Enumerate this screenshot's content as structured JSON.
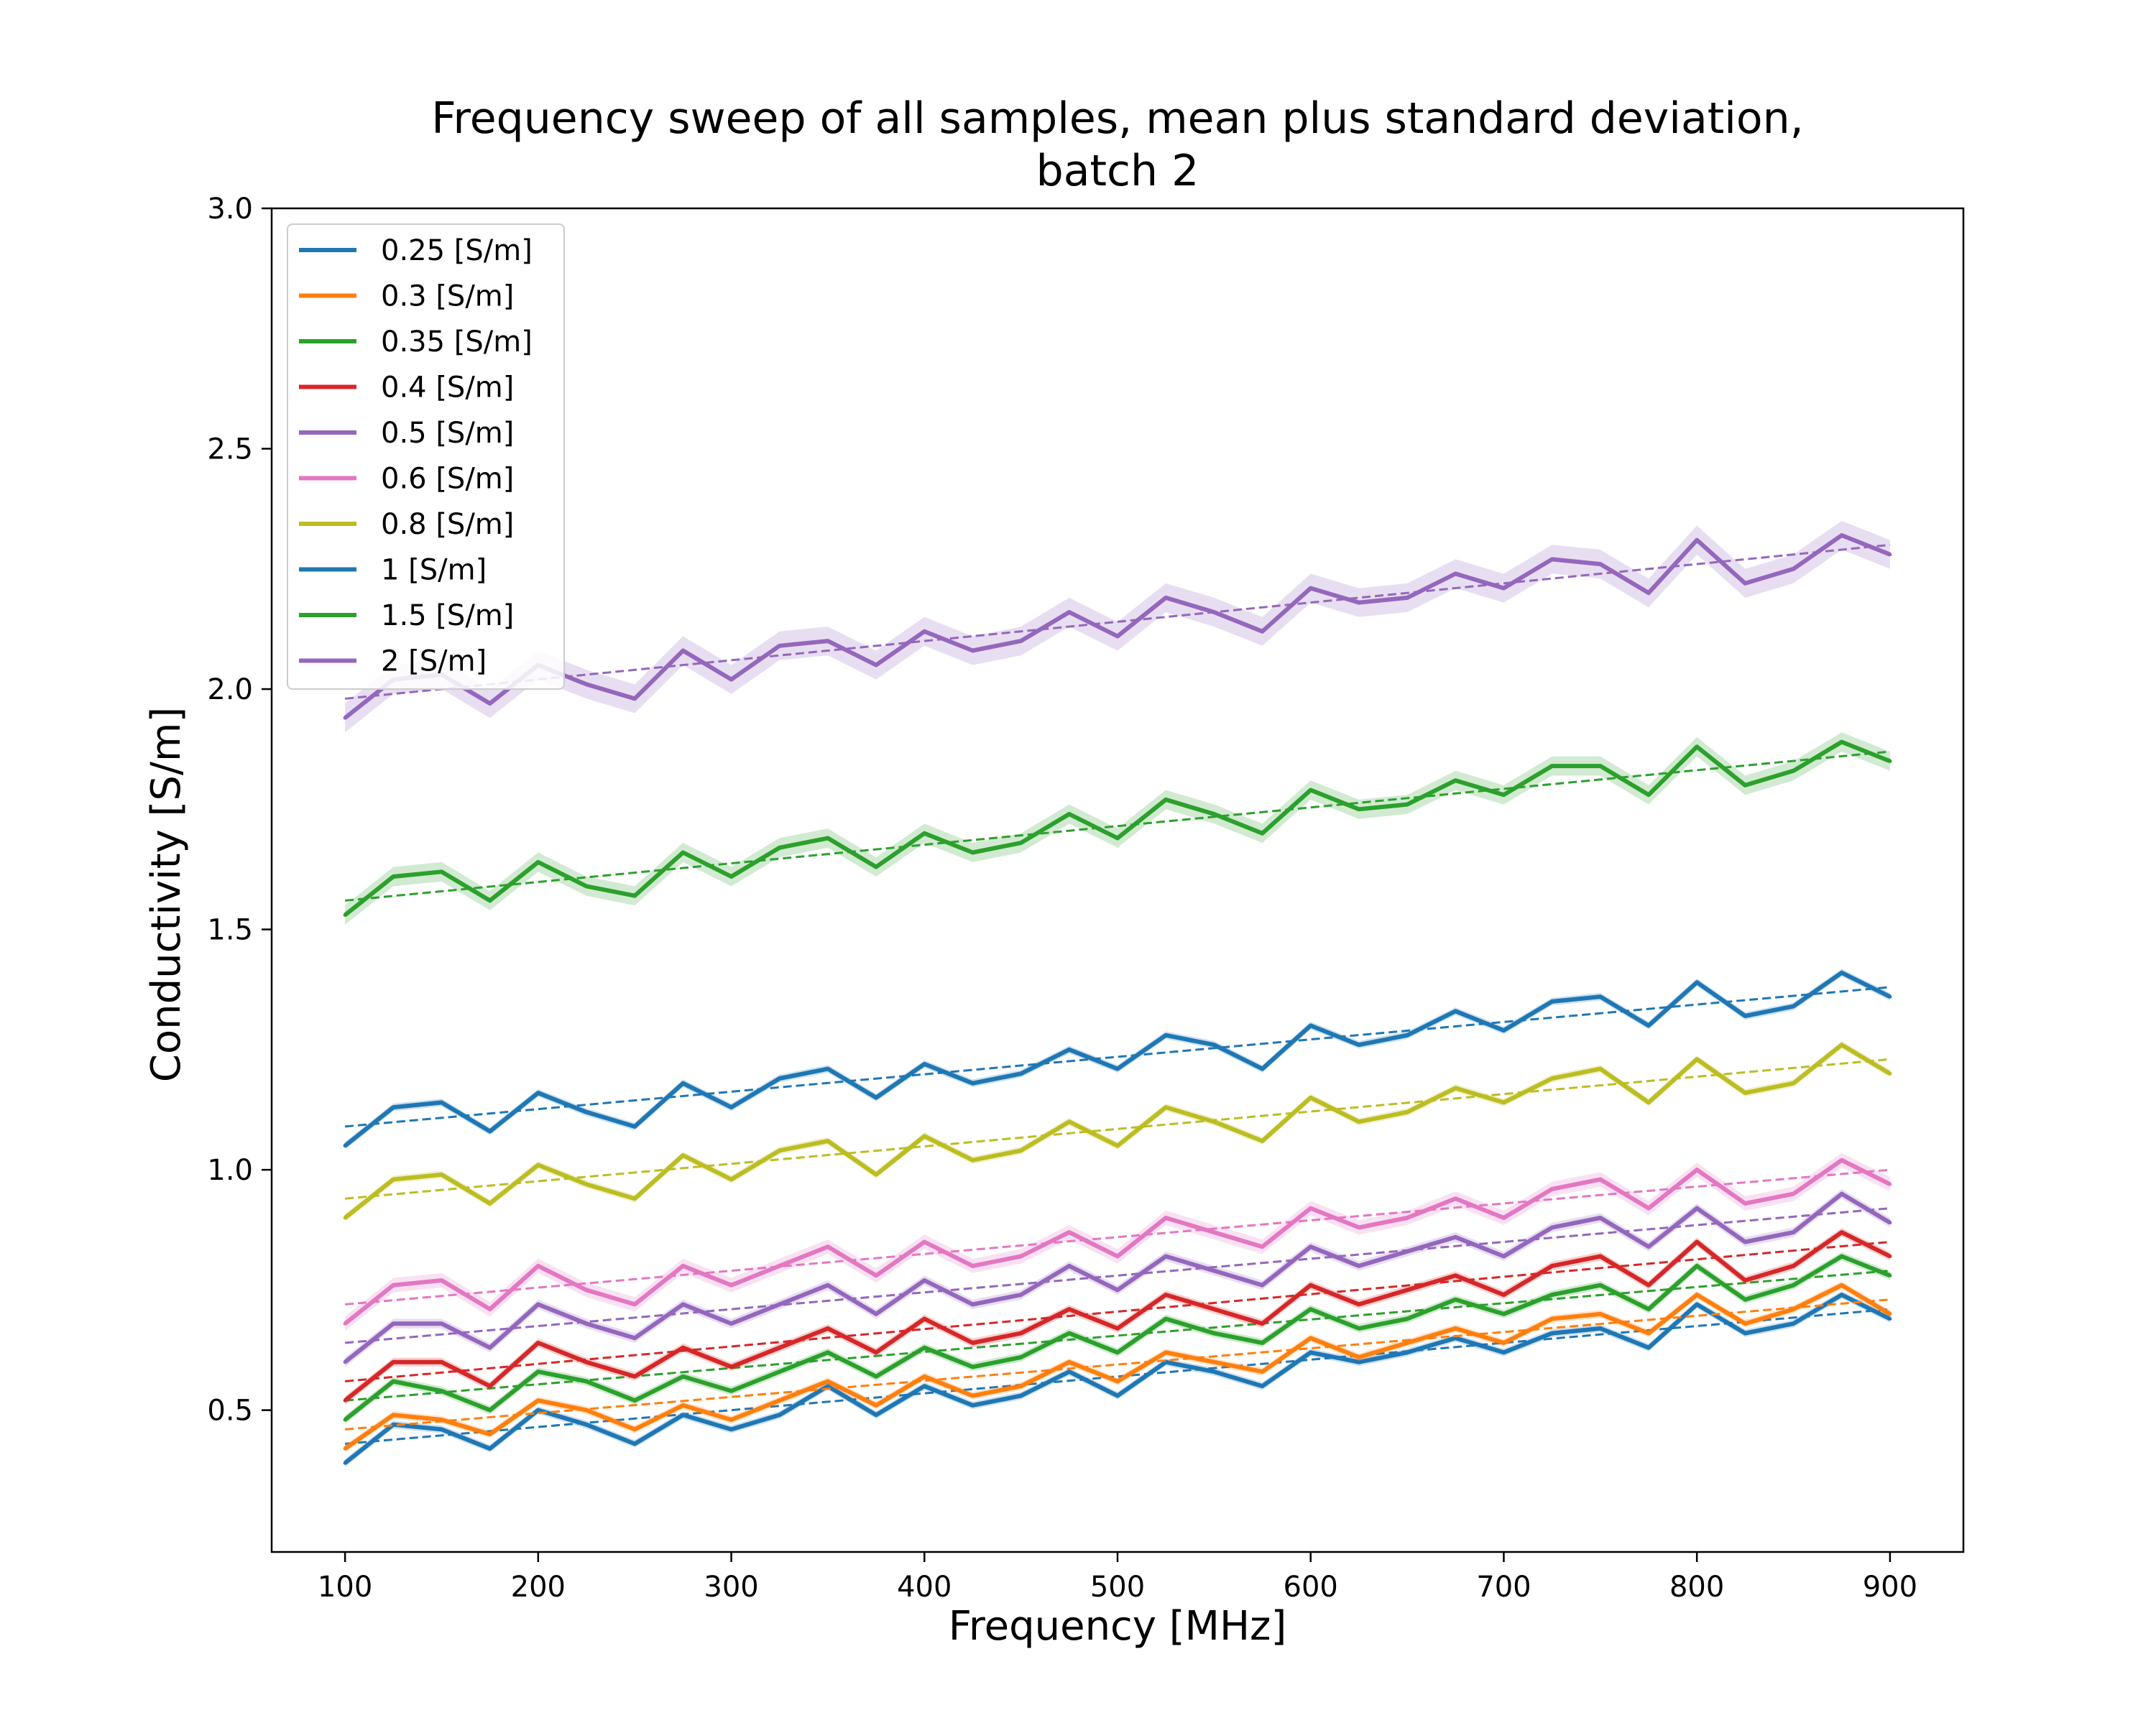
{
  "chart_data": {
    "type": "line",
    "title_lines": [
      "Frequency sweep of all samples, mean plus standard deviation,",
      "batch 2"
    ],
    "xlabel": "Frequency [MHz]",
    "ylabel": "Conductivity [S/m]",
    "xlim": [
      62,
      938
    ],
    "ylim": [
      0.205,
      3.0
    ],
    "x_ticks": [
      100,
      200,
      300,
      400,
      500,
      600,
      700,
      800,
      900
    ],
    "x_tick_labels": [
      "100",
      "200",
      "300",
      "400",
      "500",
      "600",
      "700",
      "800",
      "900"
    ],
    "y_ticks": [
      0.5,
      1.0,
      1.5,
      2.0,
      2.5,
      3.0
    ],
    "y_tick_labels": [
      "0.5",
      "1.0",
      "1.5",
      "2.0",
      "2.5",
      "3.0"
    ],
    "grid": false,
    "legend_position": "top-left",
    "line_style": "solid mean with shaded standard-deviation band and dashed linear trend",
    "x": [
      100,
      125,
      150,
      175,
      200,
      225,
      250,
      275,
      300,
      325,
      350,
      375,
      400,
      425,
      450,
      475,
      500,
      525,
      550,
      575,
      600,
      625,
      650,
      675,
      700,
      725,
      750,
      775,
      800,
      825,
      850,
      875,
      900
    ],
    "series": [
      {
        "name": "0.25 [S/m]",
        "color": "#1f77b4",
        "values": [
          0.39,
          0.47,
          0.46,
          0.42,
          0.5,
          0.47,
          0.43,
          0.49,
          0.46,
          0.49,
          0.55,
          0.49,
          0.55,
          0.51,
          0.53,
          0.58,
          0.53,
          0.6,
          0.58,
          0.55,
          0.62,
          0.6,
          0.62,
          0.65,
          0.62,
          0.66,
          0.67,
          0.63,
          0.72,
          0.66,
          0.68,
          0.74,
          0.69
        ],
        "trend": [
          0.43,
          0.71
        ],
        "std": 0.008
      },
      {
        "name": "0.3 [S/m]",
        "color": "#ff7f0e",
        "values": [
          0.42,
          0.49,
          0.48,
          0.45,
          0.52,
          0.5,
          0.46,
          0.51,
          0.48,
          0.52,
          0.56,
          0.51,
          0.57,
          0.53,
          0.55,
          0.6,
          0.56,
          0.62,
          0.6,
          0.58,
          0.65,
          0.61,
          0.64,
          0.67,
          0.64,
          0.69,
          0.7,
          0.66,
          0.74,
          0.68,
          0.71,
          0.76,
          0.7
        ],
        "trend": [
          0.46,
          0.73
        ],
        "std": 0.008
      },
      {
        "name": "0.35 [S/m]",
        "color": "#2ca02c",
        "values": [
          0.48,
          0.56,
          0.54,
          0.5,
          0.58,
          0.56,
          0.52,
          0.57,
          0.54,
          0.58,
          0.62,
          0.57,
          0.63,
          0.59,
          0.61,
          0.66,
          0.62,
          0.69,
          0.66,
          0.64,
          0.71,
          0.67,
          0.69,
          0.73,
          0.7,
          0.74,
          0.76,
          0.71,
          0.8,
          0.73,
          0.76,
          0.82,
          0.78
        ],
        "trend": [
          0.52,
          0.79
        ],
        "std": 0.009
      },
      {
        "name": "0.4 [S/m]",
        "color": "#d62728",
        "values": [
          0.52,
          0.6,
          0.6,
          0.55,
          0.64,
          0.6,
          0.57,
          0.63,
          0.59,
          0.63,
          0.67,
          0.62,
          0.69,
          0.64,
          0.66,
          0.71,
          0.67,
          0.74,
          0.71,
          0.68,
          0.76,
          0.72,
          0.75,
          0.78,
          0.74,
          0.8,
          0.82,
          0.76,
          0.85,
          0.77,
          0.8,
          0.87,
          0.82
        ],
        "trend": [
          0.56,
          0.85
        ],
        "std": 0.009
      },
      {
        "name": "0.5 [S/m]",
        "color": "#9467bd",
        "values": [
          0.6,
          0.68,
          0.68,
          0.63,
          0.72,
          0.68,
          0.65,
          0.72,
          0.68,
          0.72,
          0.76,
          0.7,
          0.77,
          0.72,
          0.74,
          0.8,
          0.75,
          0.82,
          0.79,
          0.76,
          0.84,
          0.8,
          0.83,
          0.86,
          0.82,
          0.88,
          0.9,
          0.84,
          0.92,
          0.85,
          0.87,
          0.95,
          0.89
        ],
        "trend": [
          0.64,
          0.92
        ],
        "std": 0.01
      },
      {
        "name": "0.6 [S/m]",
        "color": "#e377c2",
        "values": [
          0.68,
          0.76,
          0.77,
          0.71,
          0.8,
          0.75,
          0.72,
          0.8,
          0.76,
          0.8,
          0.84,
          0.78,
          0.85,
          0.8,
          0.82,
          0.87,
          0.82,
          0.9,
          0.87,
          0.84,
          0.92,
          0.88,
          0.9,
          0.94,
          0.9,
          0.96,
          0.98,
          0.92,
          1.0,
          0.93,
          0.95,
          1.02,
          0.97
        ],
        "trend": [
          0.72,
          1.0
        ],
        "std": 0.015
      },
      {
        "name": "0.8 [S/m]",
        "color": "#bcbd22",
        "values": [
          0.9,
          0.98,
          0.99,
          0.93,
          1.01,
          0.97,
          0.94,
          1.03,
          0.98,
          1.04,
          1.06,
          0.99,
          1.07,
          1.02,
          1.04,
          1.1,
          1.05,
          1.13,
          1.1,
          1.06,
          1.15,
          1.1,
          1.12,
          1.17,
          1.14,
          1.19,
          1.21,
          1.14,
          1.23,
          1.16,
          1.18,
          1.26,
          1.2
        ],
        "trend": [
          0.94,
          1.23
        ],
        "std": 0.008
      },
      {
        "name": "1 [S/m]",
        "color": "#1f77b4",
        "values": [
          1.05,
          1.13,
          1.14,
          1.08,
          1.16,
          1.12,
          1.09,
          1.18,
          1.13,
          1.19,
          1.21,
          1.15,
          1.22,
          1.18,
          1.2,
          1.25,
          1.21,
          1.28,
          1.26,
          1.21,
          1.3,
          1.26,
          1.28,
          1.33,
          1.29,
          1.35,
          1.36,
          1.3,
          1.39,
          1.32,
          1.34,
          1.41,
          1.36
        ],
        "trend": [
          1.09,
          1.38
        ],
        "std": 0.008
      },
      {
        "name": "1.5 [S/m]",
        "color": "#2ca02c",
        "values": [
          1.53,
          1.61,
          1.62,
          1.56,
          1.64,
          1.59,
          1.57,
          1.66,
          1.61,
          1.67,
          1.69,
          1.63,
          1.7,
          1.66,
          1.68,
          1.74,
          1.69,
          1.77,
          1.74,
          1.7,
          1.79,
          1.75,
          1.76,
          1.81,
          1.78,
          1.84,
          1.84,
          1.78,
          1.88,
          1.8,
          1.83,
          1.89,
          1.85
        ],
        "trend": [
          1.56,
          1.87
        ],
        "std": 0.02
      },
      {
        "name": "2 [S/m]",
        "color": "#9467bd",
        "values": [
          1.94,
          2.02,
          2.03,
          1.97,
          2.05,
          2.01,
          1.98,
          2.08,
          2.02,
          2.09,
          2.1,
          2.05,
          2.12,
          2.08,
          2.1,
          2.16,
          2.11,
          2.19,
          2.16,
          2.12,
          2.21,
          2.18,
          2.19,
          2.24,
          2.21,
          2.27,
          2.26,
          2.2,
          2.31,
          2.22,
          2.25,
          2.32,
          2.28
        ],
        "trend": [
          1.98,
          2.3
        ],
        "std": 0.03
      }
    ]
  }
}
